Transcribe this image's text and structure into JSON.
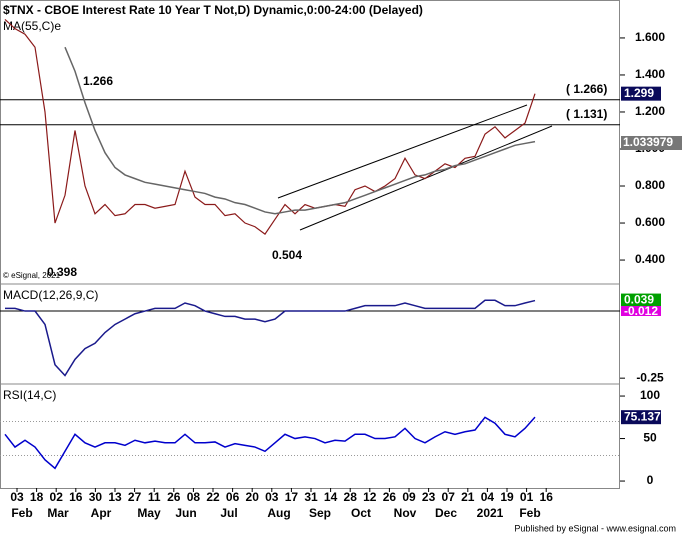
{
  "chart_data": [
    {
      "type": "line",
      "title": "$TNX - CBOE Interest Rate 10 Year T Not,D) Dynamic,0:00-24:00 (Delayed)",
      "legend": "MA(55,C)e",
      "ylim": [
        0.276,
        1.805
      ],
      "yticks": [
        {
          "value": 0.4,
          "label": "0.400"
        },
        {
          "value": 0.6,
          "label": "0.600"
        },
        {
          "value": 0.8,
          "label": "0.800"
        },
        {
          "value": 1.0,
          "label": "1.000"
        },
        {
          "value": 1.2,
          "label": "1.200"
        },
        {
          "value": 1.4,
          "label": "1.400"
        },
        {
          "value": 1.6,
          "label": "1.600"
        }
      ],
      "series": [
        {
          "name": "$TNX",
          "color": "#8b1a1a",
          "values": [
            1.7,
            1.65,
            1.62,
            1.55,
            1.2,
            0.6,
            0.75,
            1.1,
            0.8,
            0.65,
            0.7,
            0.64,
            0.65,
            0.7,
            0.7,
            0.68,
            0.69,
            0.7,
            0.88,
            0.74,
            0.7,
            0.7,
            0.64,
            0.65,
            0.6,
            0.58,
            0.54,
            0.62,
            0.7,
            0.65,
            0.7,
            0.68,
            0.69,
            0.7,
            0.69,
            0.78,
            0.8,
            0.77,
            0.8,
            0.84,
            0.95,
            0.86,
            0.84,
            0.88,
            0.92,
            0.9,
            0.95,
            0.96,
            1.08,
            1.12,
            1.06,
            1.1,
            1.14,
            1.299
          ],
          "last_label": "1.299"
        },
        {
          "name": "MA(55,C)",
          "color": "#666666",
          "values": [
            null,
            null,
            null,
            null,
            null,
            null,
            1.55,
            1.42,
            1.25,
            1.1,
            0.98,
            0.9,
            0.86,
            0.84,
            0.82,
            0.81,
            0.8,
            0.79,
            0.78,
            0.77,
            0.76,
            0.74,
            0.73,
            0.71,
            0.7,
            0.68,
            0.66,
            0.65,
            0.66,
            0.67,
            0.67,
            0.68,
            0.69,
            0.7,
            0.71,
            0.73,
            0.75,
            0.77,
            0.79,
            0.81,
            0.83,
            0.85,
            0.86,
            0.88,
            0.89,
            0.91,
            0.92,
            0.94,
            0.96,
            0.98,
            1.0,
            1.02,
            1.03,
            1.04
          ]
        }
      ],
      "levels": [
        {
          "value": 1.266,
          "label": "( 1.266)"
        },
        {
          "value": 1.131,
          "label": "( 1.131)"
        }
      ],
      "trend_label": "1.033979",
      "annotations": [
        "1.266",
        "0.398",
        "0.504"
      ],
      "watermark": "© eSignal, 2021"
    },
    {
      "type": "line",
      "title": "MACD(12,26,9,C)",
      "ylim": [
        -0.268,
        0.097
      ],
      "yticks": [
        -0.25
      ],
      "series": [
        {
          "name": "MACD",
          "color": "#1a1a8c",
          "values": [
            0.01,
            0.01,
            0.0,
            0.0,
            -0.05,
            -0.2,
            -0.24,
            -0.18,
            -0.14,
            -0.12,
            -0.08,
            -0.05,
            -0.03,
            -0.01,
            0.0,
            0.01,
            0.01,
            0.01,
            0.03,
            0.02,
            0.0,
            -0.01,
            -0.02,
            -0.02,
            -0.03,
            -0.03,
            -0.04,
            -0.03,
            0.0,
            0.0,
            0.0,
            0.0,
            0.0,
            0.0,
            0.0,
            0.01,
            0.02,
            0.02,
            0.02,
            0.02,
            0.03,
            0.02,
            0.01,
            0.01,
            0.01,
            0.01,
            0.01,
            0.01,
            0.04,
            0.04,
            0.02,
            0.02,
            0.03,
            0.039
          ],
          "last_label": "0.039"
        }
      ],
      "signal_label": "-0.012"
    },
    {
      "type": "line",
      "title": "RSI(14,C)",
      "ylim": [
        -7,
        113
      ],
      "yticks": [
        0,
        50,
        100
      ],
      "levels": [
        70,
        30
      ],
      "series": [
        {
          "name": "RSI",
          "color": "#0000cc",
          "values": [
            55,
            40,
            48,
            40,
            25,
            15,
            35,
            55,
            45,
            40,
            45,
            45,
            42,
            48,
            45,
            47,
            45,
            45,
            55,
            45,
            45,
            46,
            40,
            44,
            42,
            40,
            35,
            45,
            55,
            50,
            52,
            50,
            45,
            48,
            47,
            55,
            55,
            50,
            50,
            52,
            62,
            50,
            45,
            52,
            58,
            55,
            58,
            60,
            75,
            68,
            55,
            52,
            62,
            75.137
          ],
          "last_label": "75.137"
        }
      ]
    }
  ],
  "x_axis": {
    "days": [
      "03",
      "18",
      "02",
      "16",
      "30",
      "13",
      "27",
      "11",
      "26",
      "08",
      "22",
      "06",
      "20",
      "03",
      "17",
      "31",
      "14",
      "28",
      "12",
      "26",
      "09",
      "23",
      "07",
      "21",
      "04",
      "19",
      "01",
      "16"
    ],
    "months": [
      "Feb",
      "Mar",
      "Apr",
      "May",
      "Jun",
      "Jul",
      "Aug",
      "Sep",
      "Oct",
      "Nov",
      "Dec",
      "2021",
      "Feb"
    ]
  },
  "footer": "Published by eSignal - www.esignal.com"
}
